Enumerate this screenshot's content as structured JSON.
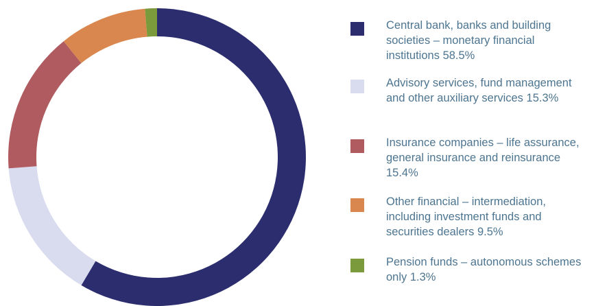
{
  "chart_data": {
    "type": "donut",
    "categories": [
      "Central bank, banks and building societies – monetary financial institutions",
      "Advisory services, fund management and other auxiliary services",
      "Insurance companies – life assurance, general insurance and reinsurance",
      "Other financial – intermediation, including investment funds and securities dealers",
      "Pension funds – autonomous schemes only"
    ],
    "values": [
      58.5,
      15.3,
      15.4,
      9.5,
      1.3
    ],
    "value_labels": [
      "58.5%",
      "15.3%",
      "15.4%",
      "9.5%",
      "1.3%"
    ],
    "colors": [
      "#2b2d6e",
      "#d9dcef",
      "#af5b5f",
      "#d9874e",
      "#7b9a3c"
    ],
    "legend": "right"
  }
}
